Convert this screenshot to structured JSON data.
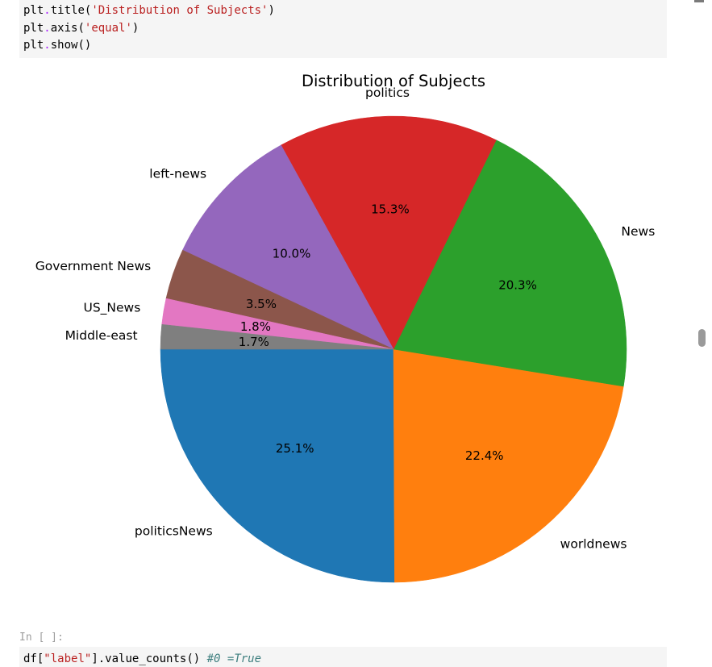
{
  "code_top": {
    "lines": [
      {
        "obj": "plt",
        "fn": "title",
        "arg": "'Distribution of Subjects'"
      },
      {
        "obj": "plt",
        "fn": "axis",
        "arg": "'equal'"
      },
      {
        "obj": "plt",
        "fn": "show",
        "arg": ""
      }
    ]
  },
  "next_cell": {
    "prompt": "In [ ]:",
    "code_prefix": "df[",
    "code_string": "\"label\"",
    "code_suffix": "].value_counts() ",
    "code_comment": "#0 =True"
  },
  "chart_data": {
    "type": "pie",
    "title": "Distribution of Subjects",
    "start_angle_deg": 180,
    "direction": "counterclockwise",
    "slices": [
      {
        "label": "politicsNews",
        "value": 25.1,
        "pct_label": "25.1%",
        "color": "#1f77b4"
      },
      {
        "label": "worldnews",
        "value": 22.4,
        "pct_label": "22.4%",
        "color": "#ff7f0e"
      },
      {
        "label": "News",
        "value": 20.3,
        "pct_label": "20.3%",
        "color": "#2ca02c"
      },
      {
        "label": "politics",
        "value": 15.3,
        "pct_label": "15.3%",
        "color": "#d62728"
      },
      {
        "label": "left-news",
        "value": 10.0,
        "pct_label": "10.0%",
        "color": "#9467bd"
      },
      {
        "label": "Government News",
        "value": 3.5,
        "pct_label": "3.5%",
        "color": "#8c564b"
      },
      {
        "label": "US_News",
        "value": 1.8,
        "pct_label": "1.8%",
        "color": "#e377c2"
      },
      {
        "label": "Middle-east",
        "value": 1.7,
        "pct_label": "1.7%",
        "color": "#7f7f7f"
      }
    ]
  }
}
